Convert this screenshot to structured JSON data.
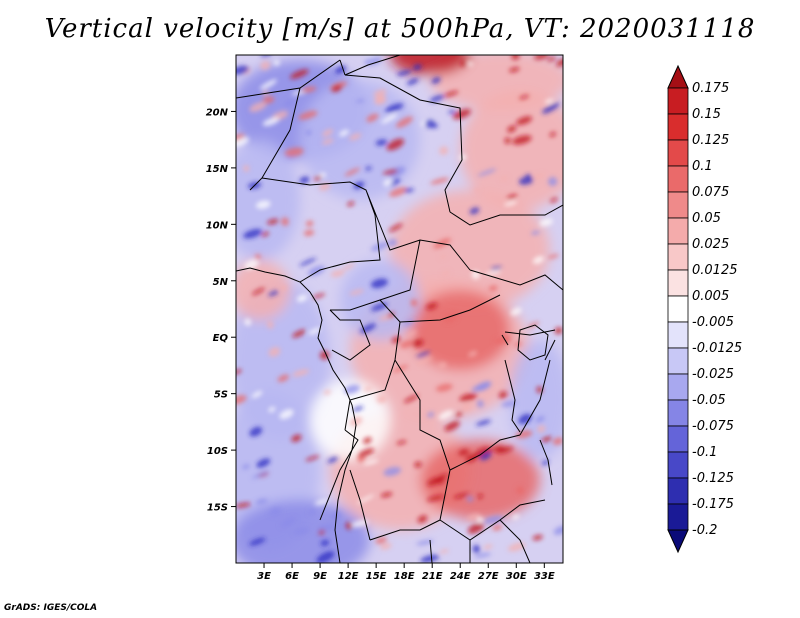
{
  "title": "Vertical velocity [m/s] at 500hPa, VT: 2020031118",
  "credit": "GrADS: IGES/COLA",
  "map": {
    "lat_labels": [
      "20N",
      "15N",
      "10N",
      "5N",
      "EQ",
      "5S",
      "10S",
      "15S"
    ],
    "lat_values": [
      20,
      15,
      10,
      5,
      0,
      -5,
      -10,
      -15
    ],
    "lon_labels": [
      "3E",
      "6E",
      "9E",
      "12E",
      "15E",
      "18E",
      "21E",
      "24E",
      "27E",
      "30E",
      "33E"
    ],
    "lon_values": [
      3,
      6,
      9,
      12,
      15,
      18,
      21,
      24,
      27,
      30,
      33
    ],
    "lon_range": [
      0,
      35
    ],
    "lat_range": [
      -20,
      25
    ]
  },
  "colorbar": {
    "labels": [
      "0.175",
      "0.15",
      "0.125",
      "0.1",
      "0.075",
      "0.05",
      "0.025",
      "0.0125",
      "0.005",
      "-0.005",
      "-0.0125",
      "-0.025",
      "-0.05",
      "-0.075",
      "-0.1",
      "-0.125",
      "-0.175",
      "-0.2"
    ],
    "colors": [
      "#a50f15",
      "#c81d22",
      "#d92d2d",
      "#e34a4a",
      "#ea6a6a",
      "#ef8a8a",
      "#f4abab",
      "#f8c8c8",
      "#fbe2e2",
      "#ffffff",
      "#e3e3fb",
      "#c8c8f6",
      "#a8a8ef",
      "#8585e6",
      "#6464d9",
      "#4848c8",
      "#2e2eb0",
      "#1a1a96",
      "#0a0a78"
    ]
  },
  "field_colors": {
    "red_strong": "#c0141c",
    "red_mid": "#e86a6a",
    "red_light": "#f4b0b0",
    "blue_light": "#b8b8f2",
    "blue_mid": "#8c8ce8",
    "blue_strong": "#2a2ac0",
    "white": "#ffffff"
  }
}
